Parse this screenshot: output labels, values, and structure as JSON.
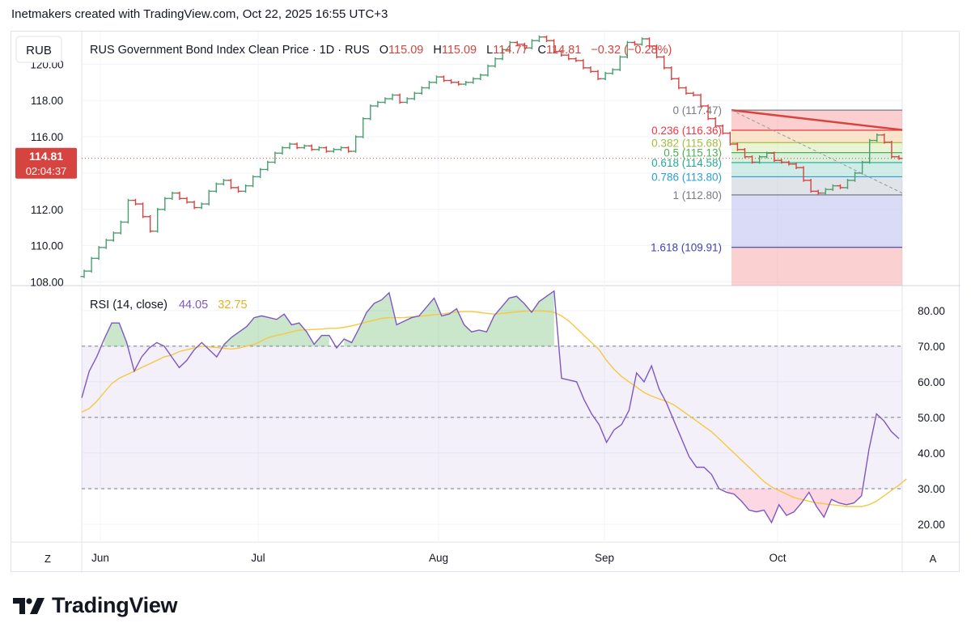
{
  "header": {
    "attribution": "Inetmakers created with TradingView.com, Oct 22, 2025 16:55 UTC+3"
  },
  "toolbar": {
    "symbol_button": "RUB",
    "bottom_left": "Z",
    "bottom_right": "A"
  },
  "legend": {
    "name": "RUS Government Bond Index Clean Price · 1D · RUS",
    "o_label": "O",
    "o_value": "115.09",
    "h_label": "H",
    "h_value": "115.09",
    "l_label": "L",
    "l_value": "114.77",
    "c_label": "C",
    "c_value": "114.81",
    "change": "−0.32 (−0.28%)"
  },
  "price_tag": {
    "price": "114.81",
    "countdown": "02:04:37"
  },
  "fib_levels": [
    {
      "label": "0 (117.47)",
      "price": 117.47,
      "color": "#787b86"
    },
    {
      "label": "0.236 (116.36)",
      "price": 116.36,
      "color": "#f23645"
    },
    {
      "label": "0.382 (115.68)",
      "price": 115.68,
      "color": "#9fbf3b"
    },
    {
      "label": "0.5 (115.13)",
      "price": 115.13,
      "color": "#4caf50"
    },
    {
      "label": "0.618 (114.58)",
      "price": 114.58,
      "color": "#22ab94"
    },
    {
      "label": "0.786 (113.80)",
      "price": 113.8,
      "color": "#2a9fd6"
    },
    {
      "label": "1 (112.80)",
      "price": 112.8,
      "color": "#787b86"
    },
    {
      "label": "1.618 (109.91)",
      "price": 109.91,
      "color": "#3f3fb5"
    }
  ],
  "rsi_legend": {
    "name": "RSI (14, close)",
    "value": "44.05",
    "ma_value": "32.75"
  },
  "colors": {
    "up": "#4a9e6f",
    "down": "#d6443f",
    "rsi": "#7e57c2",
    "rsi_ma": "#f5c842"
  },
  "chart_data": [
    {
      "type": "candlestick",
      "title": "RUS Government Bond Index Clean Price",
      "ylim": [
        107.8,
        121.8
      ],
      "y_ticks": [
        "108.00",
        "110.00",
        "112.00",
        "114.00",
        "116.00",
        "118.00",
        "120.00"
      ],
      "x_ticks": [
        "Jun",
        "Jul",
        "Aug",
        "Sep",
        "Oct"
      ],
      "close": [
        108.6,
        109.3,
        109.9,
        110.3,
        110.7,
        111.3,
        112.5,
        112.3,
        111.6,
        110.8,
        112.0,
        112.6,
        112.9,
        112.6,
        112.4,
        112.1,
        112.3,
        113.0,
        113.4,
        113.6,
        113.2,
        113.0,
        113.3,
        113.8,
        114.2,
        114.6,
        115.1,
        115.4,
        115.6,
        115.4,
        115.5,
        115.3,
        115.4,
        115.2,
        115.3,
        115.4,
        115.2,
        116.0,
        117.0,
        117.7,
        117.9,
        118.1,
        118.3,
        117.9,
        118.1,
        118.4,
        118.7,
        119.0,
        119.3,
        119.1,
        119.0,
        118.9,
        119.0,
        119.2,
        119.4,
        119.9,
        120.3,
        120.8,
        121.2,
        121.1,
        120.9,
        121.3,
        121.5,
        121.3,
        120.7,
        120.5,
        120.3,
        120.2,
        119.8,
        119.6,
        119.2,
        119.5,
        119.7,
        120.4,
        121.2,
        121.1,
        121.4,
        121.0,
        120.4,
        119.8,
        119.2,
        118.7,
        118.4,
        118.3,
        117.7,
        117.0,
        116.6,
        116.2,
        115.6,
        115.3,
        114.9,
        114.6,
        114.9,
        115.1,
        114.7,
        114.6,
        114.5,
        114.3,
        113.6,
        113.0,
        112.9,
        113.1,
        113.3,
        113.2,
        113.6,
        114.0,
        114.6,
        115.8,
        116.1,
        115.7,
        114.9,
        114.81
      ]
    },
    {
      "type": "line",
      "title": "RSI (14, close)",
      "ylim": [
        15,
        87
      ],
      "y_ticks": [
        "20.00",
        "30.00",
        "40.00",
        "50.00",
        "60.00",
        "70.00",
        "80.00"
      ],
      "bands": {
        "upper": 70,
        "middle": 50,
        "lower": 30
      },
      "series": [
        {
          "name": "RSI",
          "values": [
            55.5,
            63,
            67,
            72,
            76.5,
            76.5,
            71,
            63,
            67,
            69.5,
            71,
            70,
            67,
            64,
            66,
            69,
            71,
            69,
            67,
            70.5,
            72.5,
            74,
            75.5,
            78,
            78.5,
            78,
            77.5,
            79,
            76,
            76.5,
            74,
            70.5,
            73,
            73,
            69.5,
            72,
            71,
            75,
            79.5,
            82,
            83,
            85,
            76,
            77,
            78,
            78.5,
            81,
            83.5,
            78.5,
            79,
            80.5,
            76,
            74,
            74.5,
            74,
            78.5,
            81,
            83.5,
            84,
            82,
            79.5,
            82.5,
            84,
            85.5,
            61,
            60.5,
            60,
            55,
            51,
            48,
            43,
            46.5,
            48,
            52,
            62.5,
            60,
            64.5,
            58,
            54,
            49,
            44,
            39,
            36,
            36,
            34,
            30,
            29,
            28.5,
            26.5,
            24,
            23.5,
            24,
            20.5,
            25.5,
            22.5,
            23.5,
            26,
            29,
            25,
            22,
            27,
            26,
            25.5,
            26,
            28,
            41,
            51,
            49,
            46,
            44.05
          ]
        },
        {
          "name": "RSI MA",
          "values": [
            51.5,
            52.5,
            54.5,
            57,
            59.5,
            61,
            62,
            63,
            64,
            65,
            66,
            67,
            67.5,
            68.5,
            69,
            69.5,
            70,
            69.8,
            69.6,
            69.4,
            69.2,
            69.5,
            70,
            70.5,
            71.5,
            72.5,
            73,
            73.5,
            74,
            74.5,
            74.6,
            74.7,
            74.8,
            75,
            75,
            75.3,
            75.7,
            76.2,
            76.8,
            77.3,
            77.8,
            78,
            78,
            78,
            78.2,
            78.4,
            78.6,
            78.8,
            79,
            79.3,
            79.6,
            79.7,
            79.7,
            79.5,
            79.2,
            79,
            79.2,
            79.4,
            79.6,
            79.8,
            79.9,
            79.9,
            79.8,
            79.5,
            78.5,
            77,
            75,
            73,
            71,
            69,
            66,
            63.5,
            61.5,
            60,
            58.5,
            57,
            56,
            55.2,
            54.5,
            53.5,
            52,
            50.5,
            49,
            47.5,
            46,
            44,
            42,
            40,
            38,
            36,
            34,
            32,
            30.5,
            29.5,
            28.5,
            27.5,
            27,
            26.5,
            26,
            25.8,
            25.5,
            25.3,
            25,
            25,
            25,
            25.5,
            26.5,
            28,
            29.5,
            31,
            32.75
          ]
        }
      ]
    }
  ]
}
